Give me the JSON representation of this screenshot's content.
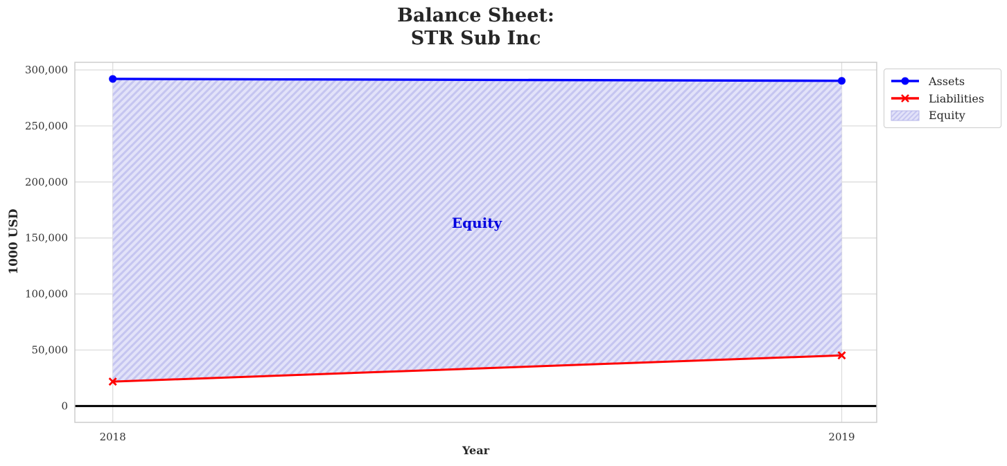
{
  "title": {
    "line1": "Balance Sheet:",
    "line2": "STR Sub Inc"
  },
  "chart_data": {
    "type": "line",
    "title": "Balance Sheet: STR Sub Inc",
    "xlabel": "Year",
    "ylabel": "1000 USD",
    "x": [
      2018,
      2019
    ],
    "series": [
      {
        "name": "Assets",
        "values": [
          292000,
          290300
        ],
        "color": "#0000ff",
        "marker": "circle",
        "linewidth": 3.4
      },
      {
        "name": "Liabilities",
        "values": [
          21800,
          45200
        ],
        "color": "#ff0000",
        "marker": "x",
        "linewidth": 3
      }
    ],
    "area": {
      "name": "Equity",
      "between": [
        "Liabilities",
        "Assets"
      ],
      "values": [
        270200,
        245100
      ],
      "label": "Equity",
      "label_x": 2018.5,
      "label_y": 163000,
      "fill_color": "#e2e2f9",
      "hatch": "/",
      "hatch_color": "#c5c5f0",
      "edge_color": "#b6b6e8",
      "label_color": "#0000e0"
    },
    "xticks": [
      2018,
      2019
    ],
    "xtick_labels": [
      "2018",
      "2019"
    ],
    "yticks": [
      0,
      50000,
      100000,
      150000,
      200000,
      250000,
      300000
    ],
    "ytick_labels": [
      "0",
      "50,000",
      "100,000",
      "150,000",
      "200,000",
      "250,000",
      "300,000"
    ],
    "xlim": [
      2017.948,
      2019.048
    ],
    "ylim": [
      -14600,
      306800
    ],
    "grid": true,
    "zero_line": {
      "y": 0,
      "color": "#000000",
      "width": 3
    },
    "legend": {
      "position": "outside-top-right",
      "entries": [
        {
          "label": "Assets",
          "handle": "line-circle",
          "color": "#0000ff"
        },
        {
          "label": "Liabilities",
          "handle": "line-x",
          "color": "#ff0000"
        },
        {
          "label": "Equity",
          "handle": "hatched-patch",
          "color": "#e2e2f9"
        }
      ]
    }
  },
  "styles": {
    "grid_color": "#dcdcdc",
    "border_color": "#c9c9c9",
    "tick_label_color": "#333333",
    "title_color": "#262626"
  }
}
